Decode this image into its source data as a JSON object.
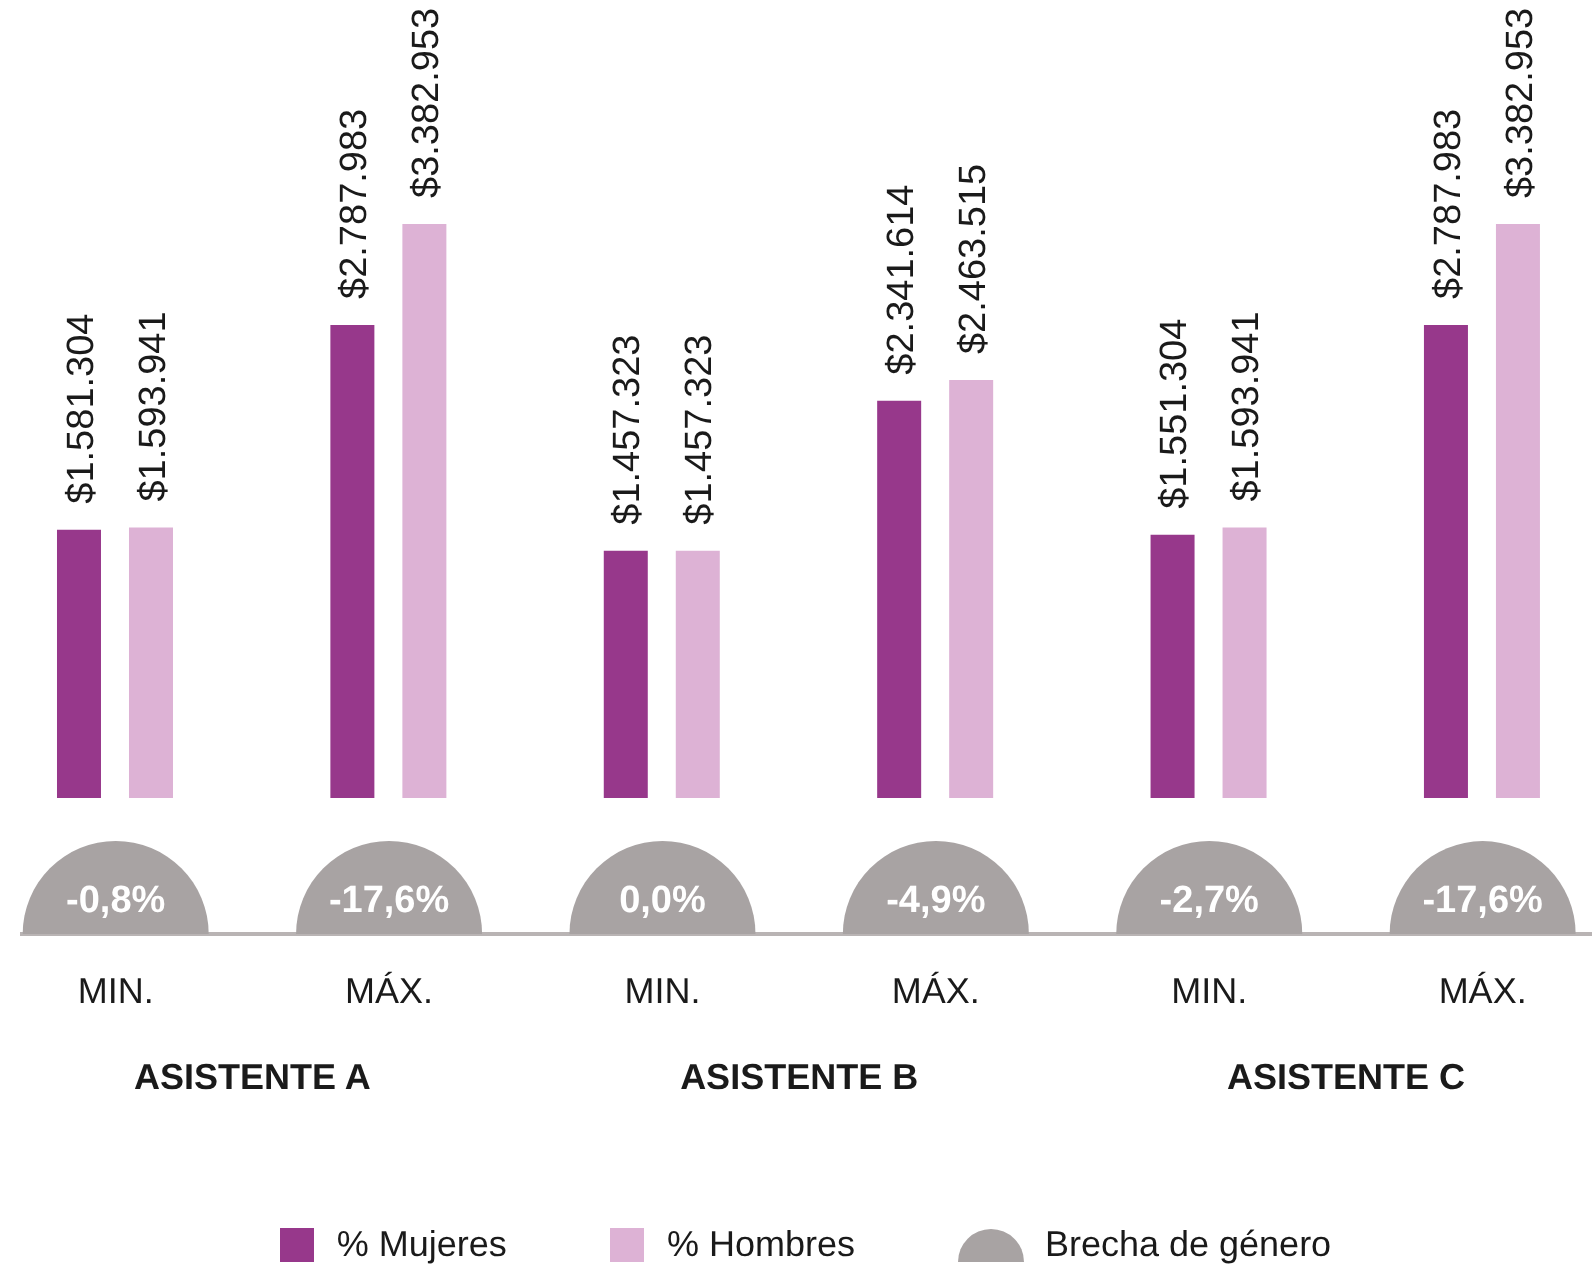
{
  "chart_data": {
    "type": "bar",
    "categories": [
      "MIN.",
      "MÁX.",
      "MIN.",
      "MÁX.",
      "MIN.",
      "MÁX."
    ],
    "annotations": [
      "ASISTENTE A",
      "ASISTENTE B",
      "ASISTENTE C",
      "-0,8%",
      "-17,6%",
      "0,0%",
      "-4,9%",
      "-2,7%",
      "-17,6%",
      "Brecha de género"
    ],
    "series": [
      {
        "name": "% Mujeres",
        "color": "#97388b",
        "values": [
          1581304,
          2787983,
          1457323,
          2341614,
          1551304,
          2787983
        ],
        "value_labels": [
          "$1.581.304",
          "$2.787.983",
          "$1.457.323",
          "$2.341.614",
          "$1.551.304",
          "$2.787.983"
        ]
      },
      {
        "name": "% Hombres",
        "color": "#ddb2d5",
        "values": [
          1593941,
          3382953,
          1457323,
          2463515,
          1593941,
          3382953
        ],
        "value_labels": [
          "$1.593.941",
          "$3.382.953",
          "$1.457.323",
          "$2.463.515",
          "$1.593.941",
          "$3.382.953"
        ]
      }
    ],
    "legend": "bottom"
  }
}
